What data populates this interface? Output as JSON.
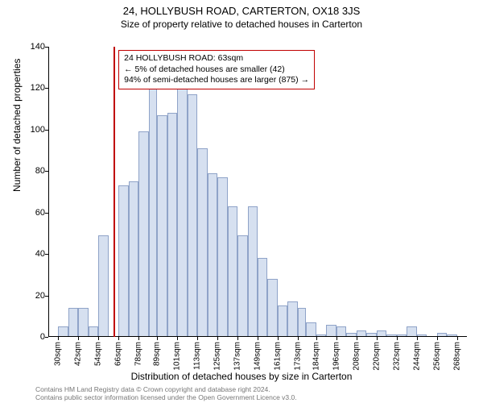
{
  "title": "24, HOLLYBUSH ROAD, CARTERTON, OX18 3JS",
  "subtitle": "Size of property relative to detached houses in Carterton",
  "ylabel": "Number of detached properties",
  "xlabel": "Distribution of detached houses by size in Carterton",
  "infobox": {
    "line1": "24 HOLLYBUSH ROAD: 63sqm",
    "line2": "← 5% of detached houses are smaller (42)",
    "line3": "94% of semi-detached houses are larger (875) →"
  },
  "attribution": {
    "line1": "Contains HM Land Registry data © Crown copyright and database right 2024.",
    "line2": "Contains public sector information licensed under the Open Government Licence v3.0."
  },
  "chart": {
    "type": "histogram",
    "ylim": [
      0,
      140
    ],
    "ytick_step": 20,
    "yticks": [
      0,
      20,
      40,
      60,
      80,
      100,
      120,
      140
    ],
    "xticks": [
      "30sqm",
      "42sqm",
      "54sqm",
      "66sqm",
      "78sqm",
      "89sqm",
      "101sqm",
      "113sqm",
      "125sqm",
      "137sqm",
      "149sqm",
      "161sqm",
      "173sqm",
      "184sqm",
      "196sqm",
      "208sqm",
      "220sqm",
      "232sqm",
      "244sqm",
      "256sqm",
      "268sqm"
    ],
    "xtick_values": [
      30,
      42,
      54,
      66,
      78,
      89,
      101,
      113,
      125,
      137,
      149,
      161,
      173,
      184,
      196,
      208,
      220,
      232,
      244,
      256,
      268
    ],
    "xaxis_range": [
      24,
      274
    ],
    "bar_fill": "#d6e0f0",
    "bar_stroke": "#8fa3c8",
    "marker_color": "#c00000",
    "marker_x": 63,
    "background": "#ffffff",
    "bars": [
      {
        "x0": 30,
        "x1": 36,
        "y": 5
      },
      {
        "x0": 36,
        "x1": 42,
        "y": 14
      },
      {
        "x0": 42,
        "x1": 48,
        "y": 14
      },
      {
        "x0": 48,
        "x1": 54,
        "y": 5
      },
      {
        "x0": 54,
        "x1": 60,
        "y": 49
      },
      {
        "x0": 60,
        "x1": 66,
        "y": 0
      },
      {
        "x0": 66,
        "x1": 72,
        "y": 73
      },
      {
        "x0": 72,
        "x1": 78,
        "y": 75
      },
      {
        "x0": 78,
        "x1": 84,
        "y": 99
      },
      {
        "x0": 84,
        "x1": 89,
        "y": 120
      },
      {
        "x0": 89,
        "x1": 95,
        "y": 107
      },
      {
        "x0": 95,
        "x1": 101,
        "y": 108
      },
      {
        "x0": 101,
        "x1": 107,
        "y": 120
      },
      {
        "x0": 107,
        "x1": 113,
        "y": 117
      },
      {
        "x0": 113,
        "x1": 119,
        "y": 91
      },
      {
        "x0": 119,
        "x1": 125,
        "y": 79
      },
      {
        "x0": 125,
        "x1": 131,
        "y": 77
      },
      {
        "x0": 131,
        "x1": 137,
        "y": 63
      },
      {
        "x0": 137,
        "x1": 143,
        "y": 49
      },
      {
        "x0": 143,
        "x1": 149,
        "y": 63
      },
      {
        "x0": 149,
        "x1": 155,
        "y": 38
      },
      {
        "x0": 155,
        "x1": 161,
        "y": 28
      },
      {
        "x0": 161,
        "x1": 167,
        "y": 15
      },
      {
        "x0": 167,
        "x1": 173,
        "y": 17
      },
      {
        "x0": 173,
        "x1": 178,
        "y": 14
      },
      {
        "x0": 178,
        "x1": 184,
        "y": 7
      },
      {
        "x0": 184,
        "x1": 190,
        "y": 1
      },
      {
        "x0": 190,
        "x1": 196,
        "y": 6
      },
      {
        "x0": 196,
        "x1": 202,
        "y": 5
      },
      {
        "x0": 202,
        "x1": 208,
        "y": 2
      },
      {
        "x0": 208,
        "x1": 214,
        "y": 3
      },
      {
        "x0": 214,
        "x1": 220,
        "y": 2
      },
      {
        "x0": 220,
        "x1": 226,
        "y": 3
      },
      {
        "x0": 226,
        "x1": 232,
        "y": 1
      },
      {
        "x0": 232,
        "x1": 238,
        "y": 1
      },
      {
        "x0": 238,
        "x1": 244,
        "y": 5
      },
      {
        "x0": 244,
        "x1": 250,
        "y": 1
      },
      {
        "x0": 250,
        "x1": 256,
        "y": 0
      },
      {
        "x0": 256,
        "x1": 262,
        "y": 2
      },
      {
        "x0": 262,
        "x1": 268,
        "y": 1
      }
    ]
  }
}
